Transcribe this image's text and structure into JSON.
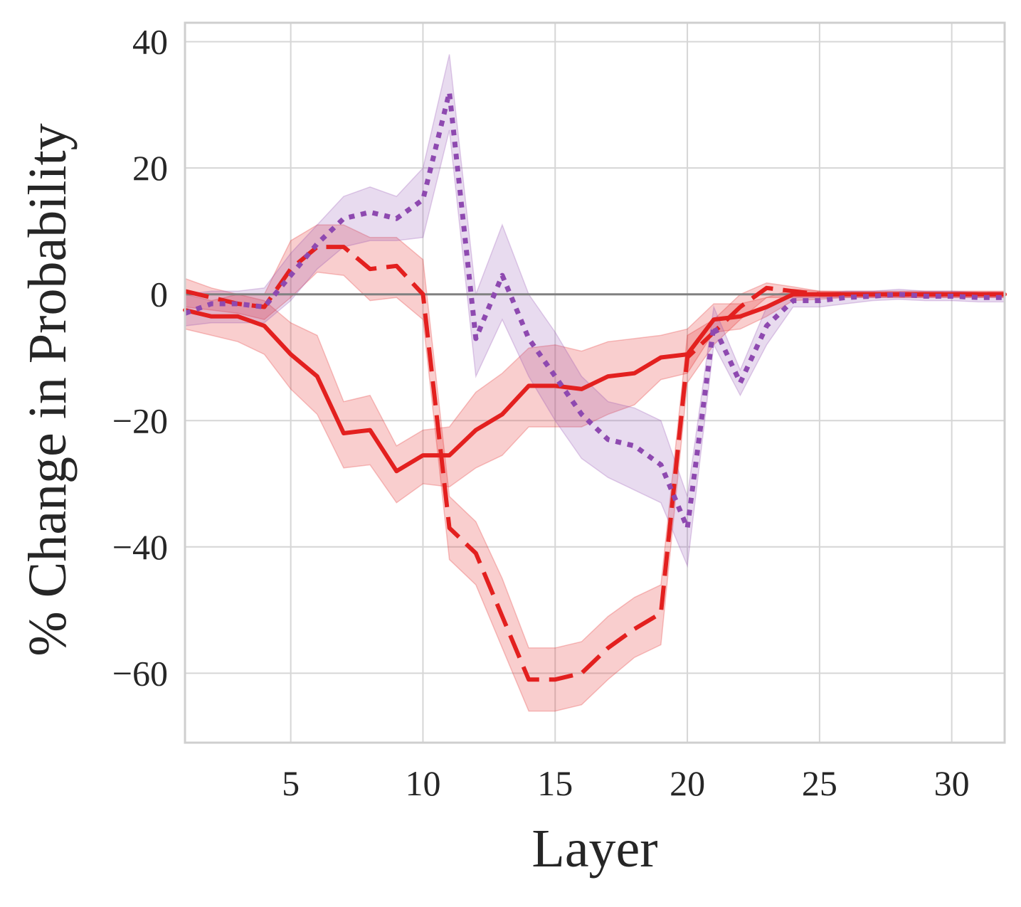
{
  "chart_data": {
    "type": "line",
    "xlabel": "Layer",
    "ylabel": "% Change in Probability",
    "xlim": [
      1,
      32
    ],
    "ylim": [
      -71,
      43
    ],
    "xticks": [
      5,
      10,
      15,
      20,
      25,
      30
    ],
    "yticks": [
      40,
      20,
      0,
      -20,
      -40,
      -60
    ],
    "ytick_labels": [
      "40",
      "20",
      "0",
      "−20",
      "−40",
      "−60"
    ],
    "grid": true,
    "reference_line_y": 0,
    "x": [
      1,
      2,
      3,
      4,
      5,
      6,
      7,
      8,
      9,
      10,
      11,
      12,
      13,
      14,
      15,
      16,
      17,
      18,
      19,
      20,
      21,
      22,
      23,
      24,
      25,
      26,
      27,
      28,
      29,
      30,
      31,
      32
    ],
    "series": [
      {
        "style": "solid",
        "color": "#e3201f",
        "values": [
          -2.5,
          -3.5,
          -3.5,
          -5,
          -9.5,
          -13,
          -22,
          -21.5,
          -28,
          -25.5,
          -25.5,
          -21.5,
          -19,
          -14.5,
          -14.5,
          -15,
          -13,
          -12.5,
          -10,
          -9.5,
          -4,
          -3.5,
          -2,
          0,
          0,
          0,
          0,
          0,
          0,
          0,
          0,
          0
        ],
        "lower": [
          -5.5,
          -6.5,
          -7.5,
          -9.5,
          -15,
          -19,
          -27.5,
          -27,
          -33,
          -30,
          -30.5,
          -27.5,
          -25.5,
          -21,
          -21,
          -21,
          -19,
          -17.5,
          -13.5,
          -12.5,
          -6,
          -5.5,
          -3.5,
          -1,
          -0.8,
          -0.5,
          -0.5,
          -0.5,
          -0.5,
          -0.5,
          -0.5,
          -0.5
        ],
        "upper": [
          0,
          -1,
          0,
          -1,
          -4.5,
          -6.5,
          -17,
          -16,
          -24,
          -21.5,
          -21,
          -15.5,
          -12.5,
          -8.5,
          -8,
          -9,
          -7.5,
          -7,
          -6.5,
          -5.5,
          -1.5,
          -1.5,
          -0.5,
          0.8,
          0.5,
          0.4,
          0.4,
          0.4,
          0.4,
          0.4,
          0.4,
          0.4
        ]
      },
      {
        "style": "dashed",
        "color": "#e3201f",
        "values": [
          0.5,
          -0.5,
          -1.5,
          -2,
          4,
          7.5,
          7.5,
          4,
          4.5,
          0,
          -37,
          -41,
          -51,
          -61,
          -61,
          -60,
          -56,
          -53,
          -50.5,
          -10,
          -6,
          -2,
          1,
          0.5,
          0,
          0,
          0,
          0,
          0,
          0,
          0,
          0
        ],
        "lower": [
          -2,
          -2.5,
          -3,
          -4,
          -0.5,
          3.5,
          3,
          -1,
          -0.5,
          -4,
          -42,
          -46,
          -56,
          -66,
          -66,
          -65,
          -61,
          -57.5,
          -55.5,
          -14,
          -8,
          -4,
          -0.5,
          -0.5,
          -0.5,
          -0.5,
          -0.5,
          -0.5,
          -0.5,
          -0.5,
          -0.5,
          -0.5
        ],
        "upper": [
          2.5,
          1,
          0,
          0,
          8.5,
          11,
          11,
          9,
          9,
          5.5,
          -32,
          -36,
          -45,
          -56,
          -56,
          -55,
          -51,
          -48,
          -46,
          -6.5,
          -4,
          0,
          1.8,
          1.2,
          0.5,
          0.5,
          0.5,
          0.5,
          0.5,
          0.5,
          0.5,
          0.5
        ]
      },
      {
        "style": "dotted",
        "color": "#8e49b0",
        "values": [
          -3,
          -1.5,
          -1.5,
          -2,
          3,
          8,
          12,
          13,
          12,
          15,
          32,
          -7,
          3,
          -7,
          -13,
          -19,
          -23,
          -24,
          -27,
          -37,
          -5,
          -14,
          -5,
          -1,
          -1,
          -0.5,
          -0.3,
          0,
          -0.3,
          -0.3,
          -0.5,
          -0.5
        ],
        "lower": [
          -5,
          -4.5,
          -4.5,
          -4.5,
          -1,
          4,
          7.5,
          8.5,
          8.5,
          9,
          26,
          -13,
          -4,
          -13,
          -20,
          -26,
          -29,
          -31,
          -33,
          -43,
          -8,
          -16,
          -8,
          -2,
          -2,
          -1.5,
          -1,
          -0.8,
          -1,
          -1,
          -1.2,
          -1.2
        ],
        "upper": [
          0,
          0.5,
          0.5,
          1,
          6.5,
          11,
          15.5,
          17,
          15.5,
          20,
          38,
          0,
          11,
          0,
          -6,
          -13,
          -17,
          -18,
          -20,
          -32,
          -2,
          -12,
          -2,
          0,
          0,
          0.5,
          0.5,
          0.8,
          0.5,
          0.5,
          0.3,
          0.3
        ]
      }
    ]
  }
}
